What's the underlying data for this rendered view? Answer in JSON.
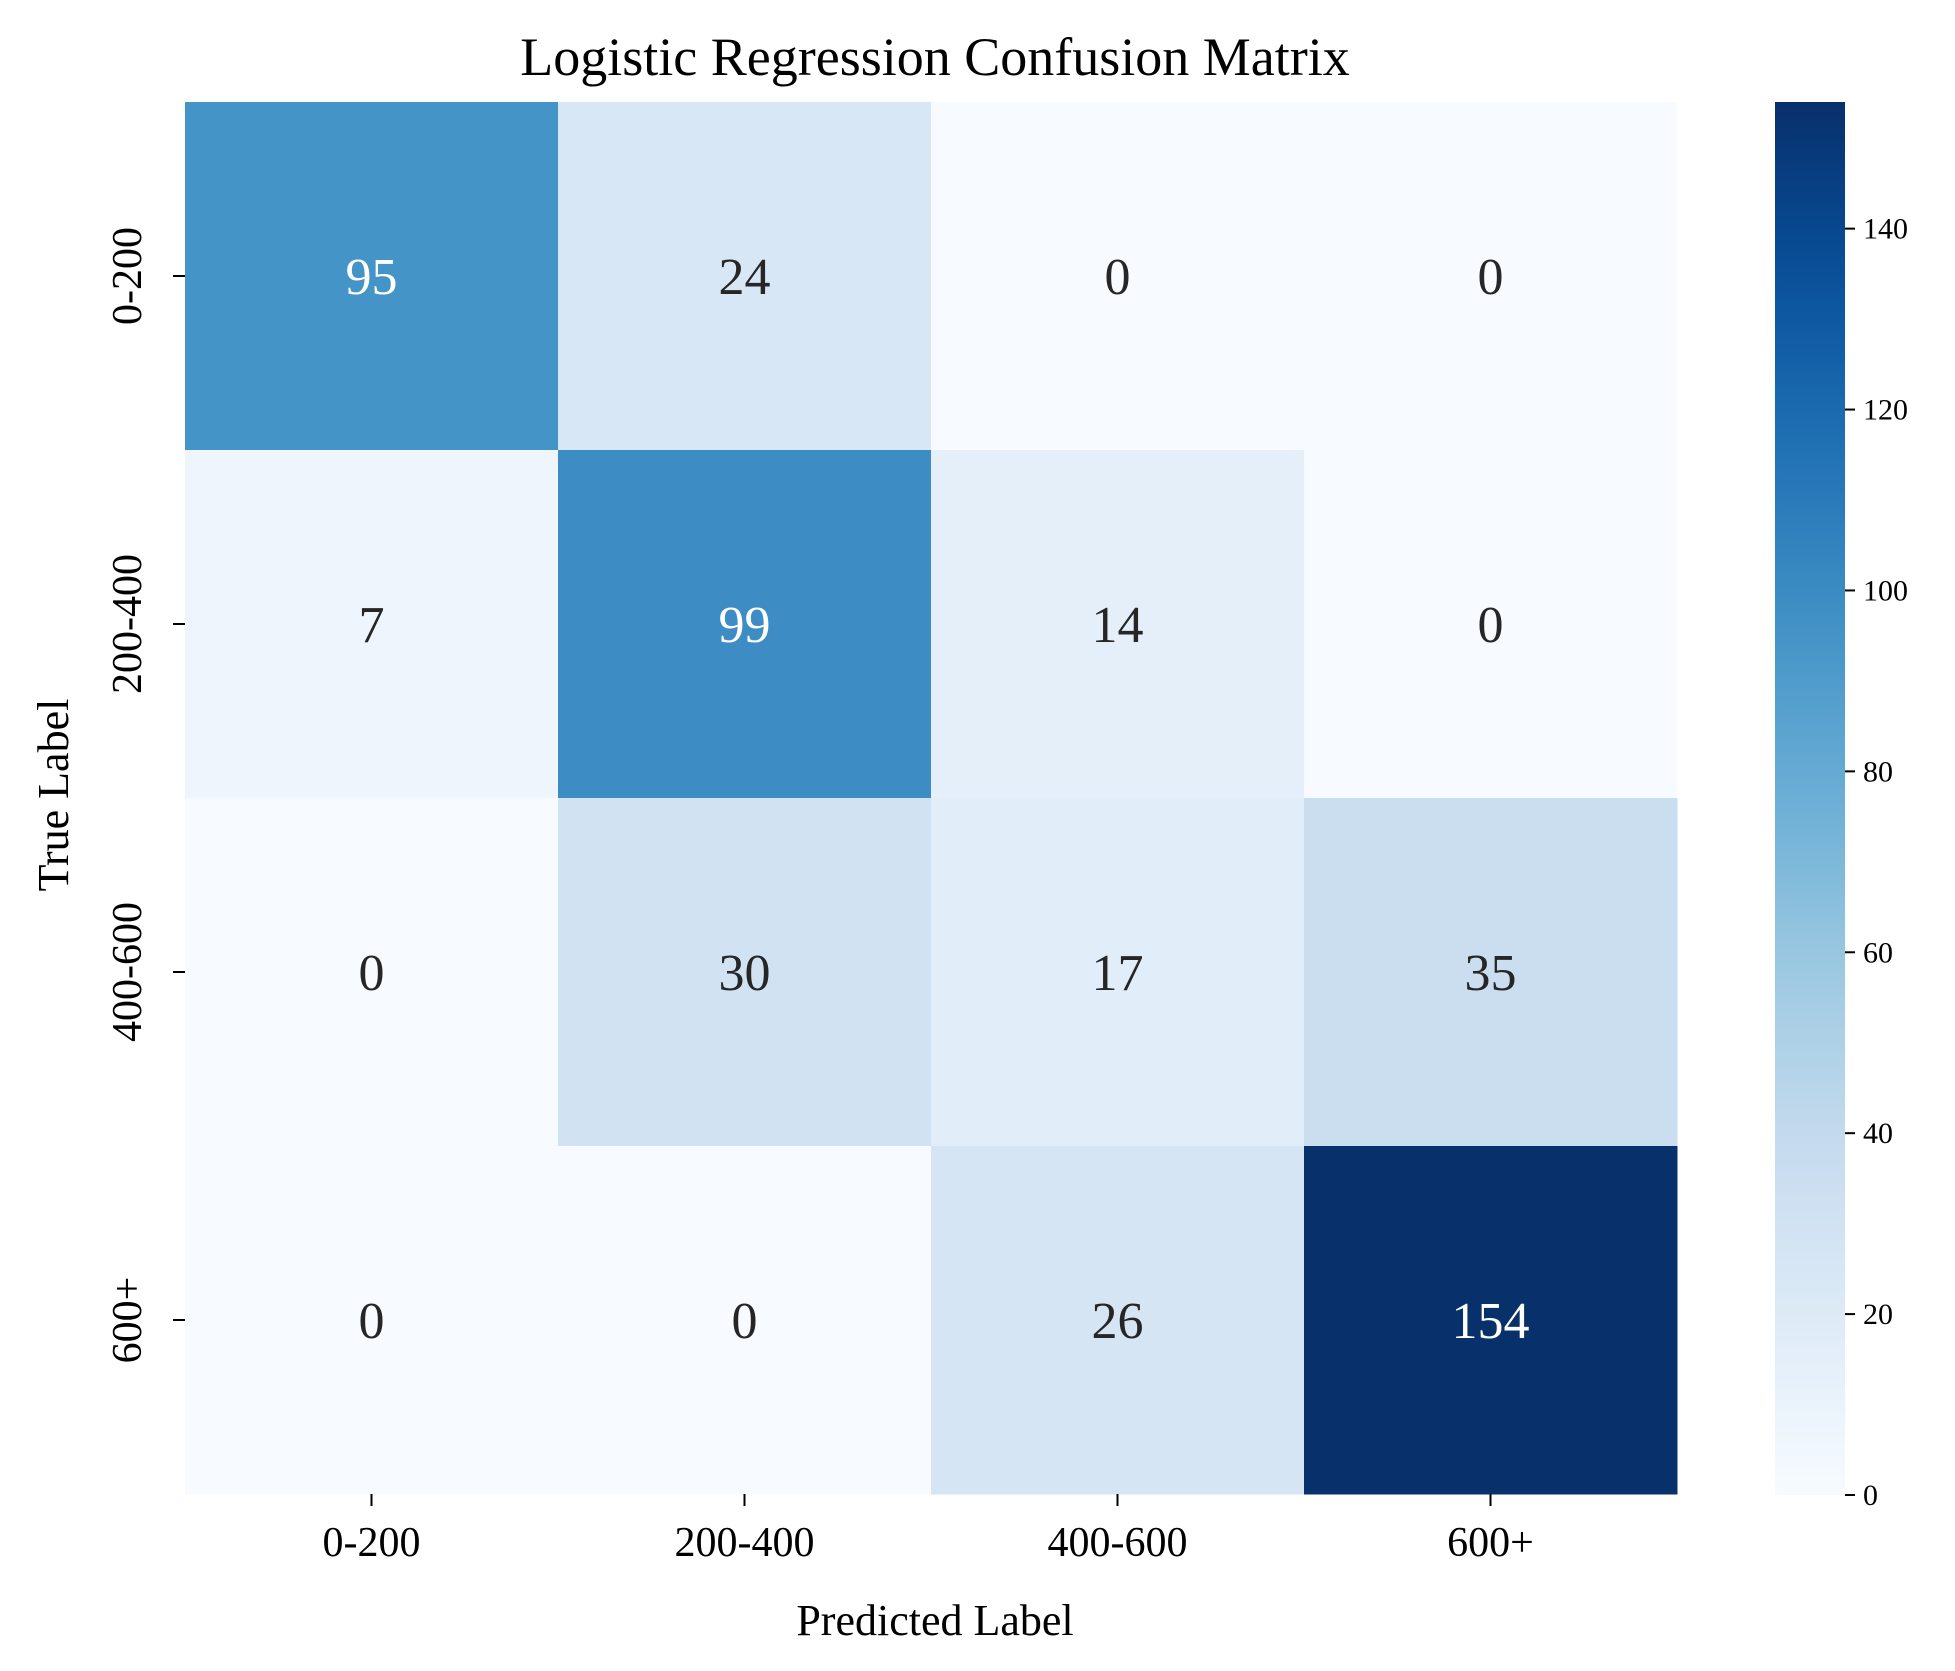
{
  "chart_data": {
    "type": "heatmap",
    "title": "Logistic Regression Confusion Matrix",
    "xlabel": "Predicted Label",
    "ylabel": "True Label",
    "x_categories": [
      "0-200",
      "200-400",
      "400-600",
      "600+"
    ],
    "y_categories": [
      "0-200",
      "200-400",
      "400-600",
      "600+"
    ],
    "values": [
      [
        95,
        24,
        0,
        0
      ],
      [
        7,
        99,
        14,
        0
      ],
      [
        0,
        30,
        17,
        35
      ],
      [
        0,
        0,
        26,
        154
      ]
    ],
    "colormap": "Blues",
    "color_range": [
      0,
      154
    ],
    "colorbar_ticks": [
      0,
      20,
      40,
      60,
      80,
      100,
      120,
      140
    ],
    "colors": {
      "low": "#f7fbff",
      "high": "#08306b",
      "text_dark": "#262626",
      "text_light": "#ffffff"
    }
  }
}
